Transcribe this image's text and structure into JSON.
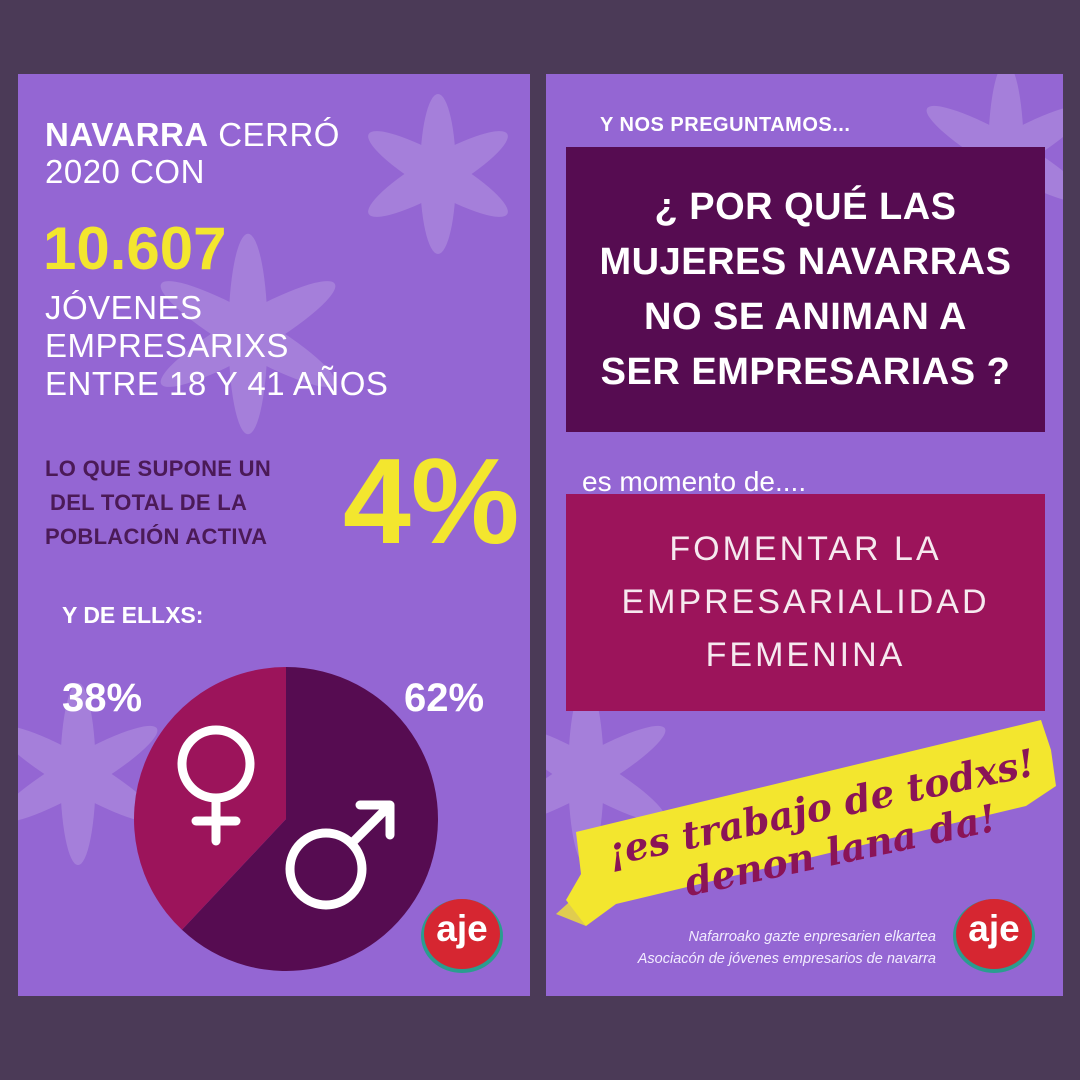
{
  "left_panel": {
    "headline_bold": "NAVARRA",
    "headline_rest": " CERRÓ",
    "headline_line2": "2020 CON",
    "count": "10.607",
    "desc_line1": "JÓVENES",
    "desc_line2": "EMPRESARIXS",
    "desc_line3": "ENTRE 18 Y 41 AÑOS",
    "share_line1": "LO QUE SUPONE UN",
    "share_line2": "DEL TOTAL DE LA",
    "share_line3": "POBLACIÓN ACTIVA",
    "share_percent": "4%",
    "subtitle": "Y DE ELLXS:",
    "female_label": "38%",
    "male_label": "62%",
    "female_share": 0.38,
    "male_share": 0.62,
    "female_icon": "female-symbol-icon",
    "male_icon": "male-symbol-icon",
    "logo_text": "aje"
  },
  "right_panel": {
    "kicker": "Y NOS PREGUNTAMOS...",
    "question_line1": "¿ POR QUÉ LAS",
    "question_line2": "MUJERES NAVARRAS",
    "question_line3": "NO SE ANIMAN A",
    "question_line4": "SER EMPRESARIAS ?",
    "lead": "es momento de....",
    "promo_line1": "FOMENTAR LA",
    "promo_line2": "EMPRESARIALIDAD",
    "promo_line3": "FEMENINA",
    "slogan_line1": "¡es trabajo de todxs!",
    "slogan_line2": "denon lana da!",
    "credit_line1": "Nafarroako gazte enpresarien elkartea",
    "credit_line2": "Asociacón de jóvenes empresarios de navarra",
    "logo_text": "aje"
  },
  "colors": {
    "background": "#4b3a57",
    "panel": "#9466d3",
    "plum": "#560c51",
    "magenta": "#9c145b",
    "yellow": "#f3e62e",
    "logo_red": "#d62631"
  }
}
